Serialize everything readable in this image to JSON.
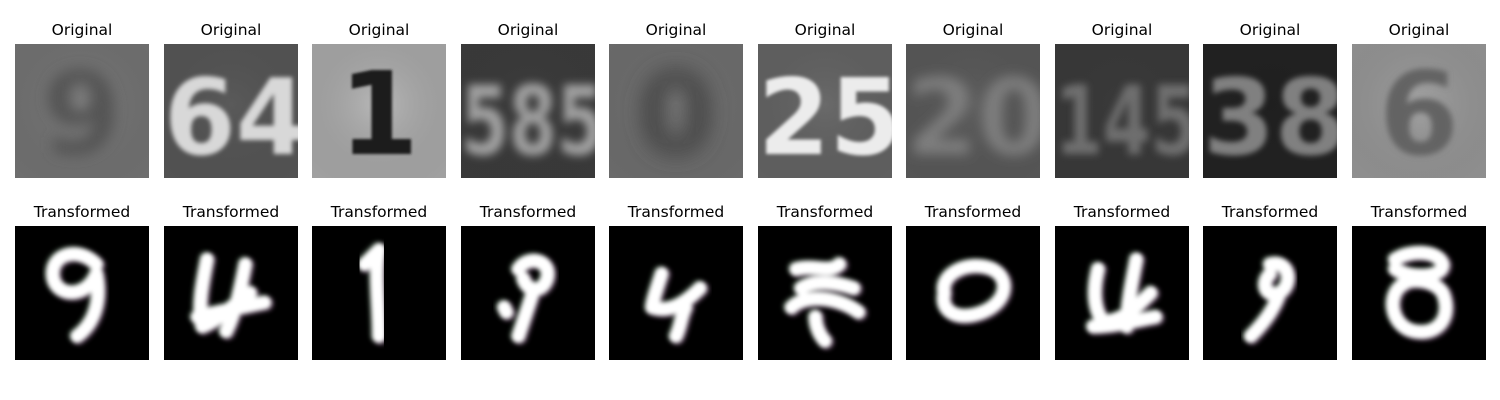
{
  "rows": [
    {
      "name": "original",
      "label": "Original",
      "bg": "#6e6e6e",
      "tiles": [
        {
          "digit": "9",
          "bg": "#7c7c7c",
          "fg": "#555555",
          "blur": 4
        },
        {
          "digit": "64",
          "bg": "#5a5a5a",
          "fg": "#d8d8d8",
          "blur": 1.2
        },
        {
          "digit": "1",
          "bg": "#b9b9b9",
          "fg": "#1e1e1e",
          "blur": 0.8
        },
        {
          "digit": "585",
          "bg": "#3c3c3c",
          "fg": "#a0a0a0",
          "blur": 2.5
        },
        {
          "digit": "0",
          "bg": "#777777",
          "fg": "#454545",
          "blur": 6
        },
        {
          "digit": "25",
          "bg": "#6a6a6a",
          "fg": "#ececec",
          "blur": 1
        },
        {
          "digit": "20",
          "bg": "#5e5e5e",
          "fg": "#7e7e7e",
          "blur": 3.5
        },
        {
          "digit": "145",
          "bg": "#3a3a3a",
          "fg": "#6e6e6e",
          "blur": 2.2
        },
        {
          "digit": "38",
          "bg": "#1f1f1f",
          "fg": "#808080",
          "blur": 1.6
        },
        {
          "digit": "6",
          "bg": "#a4a4a4",
          "fg": "#636363",
          "blur": 1.8
        }
      ]
    },
    {
      "name": "transformed",
      "label": "Transformed",
      "bg": "#000000",
      "tiles": [
        {
          "digit": "9"
        },
        {
          "digit": "4"
        },
        {
          "digit": "1"
        },
        {
          "digit": "9"
        },
        {
          "digit": "4"
        },
        {
          "digit": "2"
        },
        {
          "digit": "0"
        },
        {
          "digit": "4"
        },
        {
          "digit": "9"
        },
        {
          "digit": "8"
        }
      ]
    }
  ],
  "colors": {
    "stroke_white": "#ffffff",
    "tint_magenta": "#e8a8e8",
    "tint_green": "#b8f0c0"
  }
}
